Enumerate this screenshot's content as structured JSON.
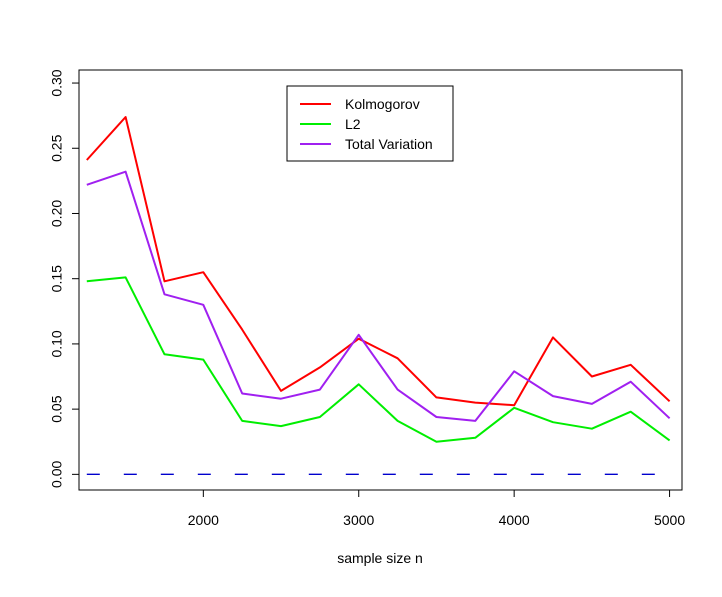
{
  "chart_data": {
    "type": "line",
    "title": "",
    "xlabel": "sample size n",
    "ylabel": "",
    "xlim": [
      1200,
      5080
    ],
    "ylim": [
      -0.012,
      0.31
    ],
    "x_ticks": [
      2000,
      3000,
      4000,
      5000
    ],
    "y_ticks": [
      0.0,
      0.05,
      0.1,
      0.15,
      0.2,
      0.25,
      0.3
    ],
    "y_tick_labels": [
      "0.00",
      "0.05",
      "0.10",
      "0.15",
      "0.20",
      "0.25",
      "0.30"
    ],
    "x_tick_labels": [
      "2000",
      "3000",
      "4000",
      "5000"
    ],
    "grid": false,
    "legend_position": "top-center",
    "x": [
      1250,
      1500,
      1750,
      2000,
      2250,
      2500,
      2750,
      3000,
      3250,
      3500,
      3750,
      4000,
      4250,
      4500,
      4750,
      5000
    ],
    "series": [
      {
        "name": "Kolmogorov",
        "color": "#ff0000",
        "style": "solid",
        "values": [
          0.241,
          0.274,
          0.148,
          0.155,
          0.111,
          0.064,
          0.082,
          0.104,
          0.089,
          0.059,
          0.055,
          0.053,
          0.105,
          0.075,
          0.084,
          0.056
        ]
      },
      {
        "name": "L2",
        "color": "#00ee00",
        "style": "solid",
        "values": [
          0.148,
          0.151,
          0.092,
          0.088,
          0.041,
          0.037,
          0.044,
          0.069,
          0.041,
          0.025,
          0.028,
          0.051,
          0.04,
          0.035,
          0.048,
          0.026
        ]
      },
      {
        "name": "Total Variation",
        "color": "#a020f0",
        "style": "solid",
        "values": [
          0.222,
          0.232,
          0.138,
          0.13,
          0.062,
          0.058,
          0.065,
          0.107,
          0.065,
          0.044,
          0.041,
          0.079,
          0.06,
          0.054,
          0.071,
          0.043
        ]
      },
      {
        "name": "",
        "color": "#0000cd",
        "style": "dashed",
        "values": [
          0,
          0,
          0,
          0,
          0,
          0,
          0,
          0,
          0,
          0,
          0,
          0,
          0,
          0,
          0,
          0
        ]
      }
    ]
  }
}
